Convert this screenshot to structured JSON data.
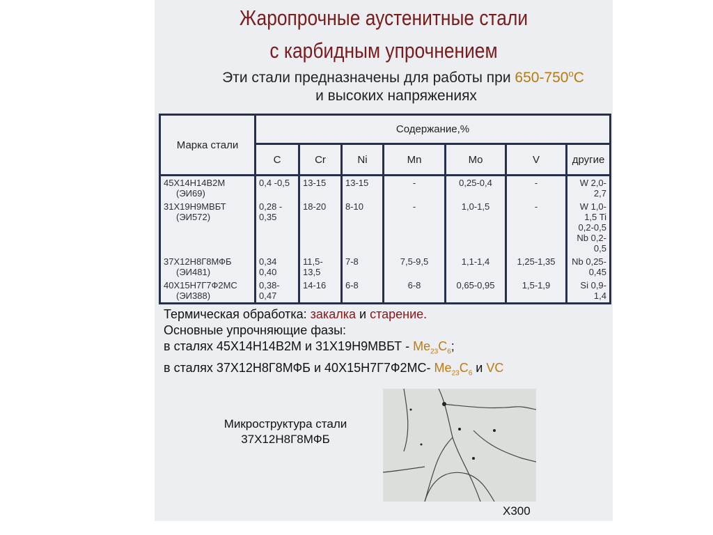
{
  "title_line1": "Жаропрочные аустенитные стали",
  "title_line2": "с карбидным упрочнением",
  "subtitle_line1_prefix": "Эти стали предназначены для работы при ",
  "subtitle_temp": "650-750",
  "subtitle_deg": "o",
  "subtitle_unit": "C",
  "subtitle_line2": "и высоких напряжениях",
  "table": {
    "grade_header": "Марка стали",
    "content_header": "Содержание,%",
    "columns": [
      "C",
      "Cr",
      "Ni",
      "Mn",
      "Mo",
      "V",
      "другие"
    ],
    "rows": [
      {
        "grade": "45Х14Н14В2М",
        "alias": "(ЭИ69)",
        "C": "0,4 -0,5",
        "Cr": "13-15",
        "Ni": "13-15",
        "Mn": "-",
        "Mo": "0,25-0,4",
        "V": "-",
        "other": "W 2,0-2,7"
      },
      {
        "grade": "31Х19Н9МВБТ",
        "alias": "(ЭИ572)",
        "C": "0,28 - 0,35",
        "Cr": "18-20",
        "Ni": "8-10",
        "Mn": "-",
        "Mo": "1,0-1,5",
        "V": "-",
        "other": "W 1,0-1,5 Ti 0,2-0,5 Nb 0,2-0,5"
      },
      {
        "grade": "37Х12Н8Г8МФБ",
        "alias": "(ЭИ481)",
        "C": "0,34 0,40",
        "Cr": "11,5- 13,5",
        "Ni": "7-8",
        "Mn": "7,5-9,5",
        "Mo": "1,1-1,4",
        "V": "1,25-1,35",
        "other": "Nb 0,25- 0,45"
      },
      {
        "grade": "40Х15Н7Г7Ф2МС",
        "alias": "(ЭИ388)",
        "C": "0,38- 0,47",
        "Cr": "14-16",
        "Ni": "6-8",
        "Mn": "6-8",
        "Mo": "0,65-0,95",
        "V": "1,5-1,9",
        "other": "Si 0,9-1,4"
      }
    ]
  },
  "heat_label": "Термическая обработка: ",
  "heat_a": "закалка",
  "heat_and": " и ",
  "heat_b": "старение.",
  "phases_label": "Основные упрочняющие фазы:",
  "line3_a": "в сталях ",
  "line3_b": "45Х14Н14В2М",
  "line3_c": " и ",
  "line3_d": "31Х19Н9МВБТ - ",
  "line4_a": "в сталях ",
  "line4_b": "37Х12Н8Г8МФБ",
  "line4_c": " и ",
  "line4_d": "40Х15Н7Г7Ф2МС- ",
  "phase_me": "Me",
  "phase_sub1": "23",
  "phase_c": "C",
  "phase_sub2": "6",
  "semicolon": ";",
  "and": " и ",
  "vc": "VC",
  "caption_line1": "Микроструктура стали",
  "caption_line2": "37Х12Н8Г8МФБ",
  "magnification": "Х300",
  "colors": {
    "title": "#7a1c1c",
    "highlight": "#c07a10",
    "accent_red": "#8a1616",
    "table_border": "#27304a"
  }
}
